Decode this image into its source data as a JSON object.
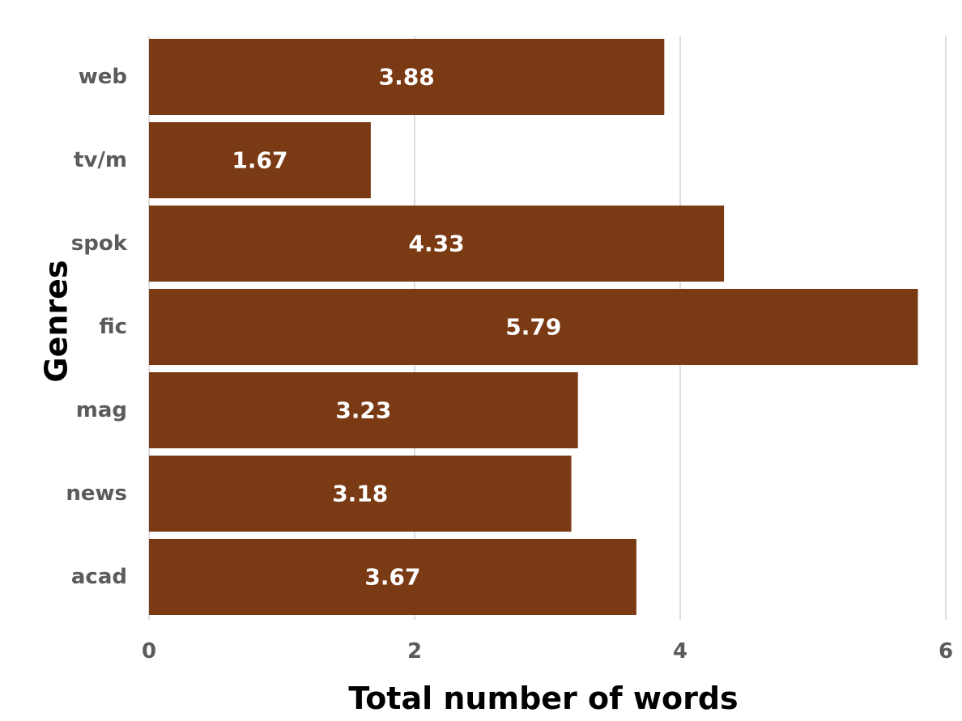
{
  "chart_data": {
    "type": "bar",
    "orientation": "horizontal",
    "categories": [
      "web",
      "tv/m",
      "spok",
      "fic",
      "mag",
      "news",
      "acad"
    ],
    "values": [
      3.88,
      1.67,
      4.33,
      5.79,
      3.23,
      3.18,
      3.67
    ],
    "value_labels": [
      "3.88",
      "1.67",
      "4.33",
      "5.79",
      "3.23",
      "3.18",
      "3.67"
    ],
    "xlabel": "Total number of words",
    "ylabel": "Genres",
    "xlim": [
      0,
      6
    ],
    "xticks": [
      0,
      2,
      4,
      6
    ],
    "xtick_labels": [
      "0",
      "2",
      "4",
      "6"
    ],
    "grid": "vertical",
    "legend": "none",
    "colors": {
      "bar": "#7a3a14",
      "bar_label": "#ffffff",
      "tick_label": "#5b5b5b",
      "grid": "#d4d4d4",
      "axis_title": "#000000"
    }
  }
}
